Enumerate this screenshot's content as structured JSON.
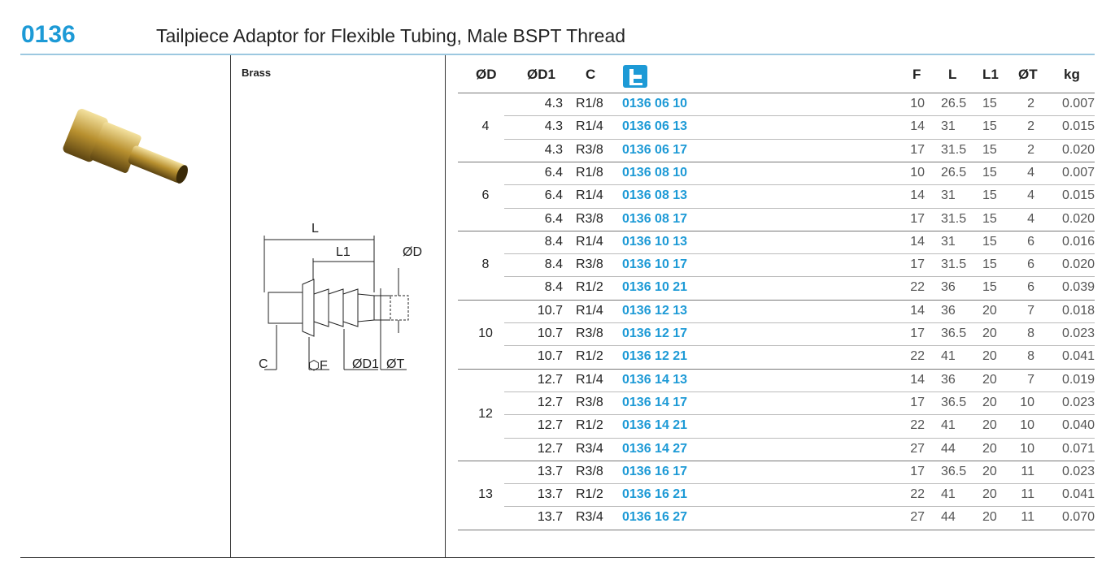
{
  "header": {
    "code": "0136",
    "title": "Tailpiece Adaptor for Flexible Tubing, Male BSPT Thread"
  },
  "material": "Brass",
  "drawing": {
    "labels": [
      "L",
      "L1",
      "ØD",
      "C",
      "⬡F",
      "ØD1",
      "ØT"
    ]
  },
  "table": {
    "columns": [
      "ØD",
      "ØD1",
      "C",
      "F",
      "L",
      "L1",
      "ØT",
      "kg"
    ],
    "groups": [
      {
        "d": "4",
        "rows": [
          [
            "4.3",
            "R1/8",
            "0136 06 10",
            "10",
            "26.5",
            "15",
            "2",
            "0.007"
          ],
          [
            "4.3",
            "R1/4",
            "0136 06 13",
            "14",
            "31",
            "15",
            "2",
            "0.015"
          ],
          [
            "4.3",
            "R3/8",
            "0136 06 17",
            "17",
            "31.5",
            "15",
            "2",
            "0.020"
          ]
        ]
      },
      {
        "d": "6",
        "rows": [
          [
            "6.4",
            "R1/8",
            "0136 08 10",
            "10",
            "26.5",
            "15",
            "4",
            "0.007"
          ],
          [
            "6.4",
            "R1/4",
            "0136 08 13",
            "14",
            "31",
            "15",
            "4",
            "0.015"
          ],
          [
            "6.4",
            "R3/8",
            "0136 08 17",
            "17",
            "31.5",
            "15",
            "4",
            "0.020"
          ]
        ]
      },
      {
        "d": "8",
        "rows": [
          [
            "8.4",
            "R1/4",
            "0136 10 13",
            "14",
            "31",
            "15",
            "6",
            "0.016"
          ],
          [
            "8.4",
            "R3/8",
            "0136 10 17",
            "17",
            "31.5",
            "15",
            "6",
            "0.020"
          ],
          [
            "8.4",
            "R1/2",
            "0136 10 21",
            "22",
            "36",
            "15",
            "6",
            "0.039"
          ]
        ]
      },
      {
        "d": "10",
        "rows": [
          [
            "10.7",
            "R1/4",
            "0136 12 13",
            "14",
            "36",
            "20",
            "7",
            "0.018"
          ],
          [
            "10.7",
            "R3/8",
            "0136 12 17",
            "17",
            "36.5",
            "20",
            "8",
            "0.023"
          ],
          [
            "10.7",
            "R1/2",
            "0136 12 21",
            "22",
            "41",
            "20",
            "8",
            "0.041"
          ]
        ]
      },
      {
        "d": "12",
        "rows": [
          [
            "12.7",
            "R1/4",
            "0136 14 13",
            "14",
            "36",
            "20",
            "7",
            "0.019"
          ],
          [
            "12.7",
            "R3/8",
            "0136 14 17",
            "17",
            "36.5",
            "20",
            "10",
            "0.023"
          ],
          [
            "12.7",
            "R1/2",
            "0136 14 21",
            "22",
            "41",
            "20",
            "10",
            "0.040"
          ],
          [
            "12.7",
            "R3/4",
            "0136 14 27",
            "27",
            "44",
            "20",
            "10",
            "0.071"
          ]
        ]
      },
      {
        "d": "13",
        "rows": [
          [
            "13.7",
            "R3/8",
            "0136 16 17",
            "17",
            "36.5",
            "20",
            "11",
            "0.023"
          ],
          [
            "13.7",
            "R1/2",
            "0136 16 21",
            "22",
            "41",
            "20",
            "11",
            "0.041"
          ],
          [
            "13.7",
            "R3/4",
            "0136 16 27",
            "27",
            "44",
            "20",
            "11",
            "0.070"
          ]
        ]
      }
    ]
  }
}
